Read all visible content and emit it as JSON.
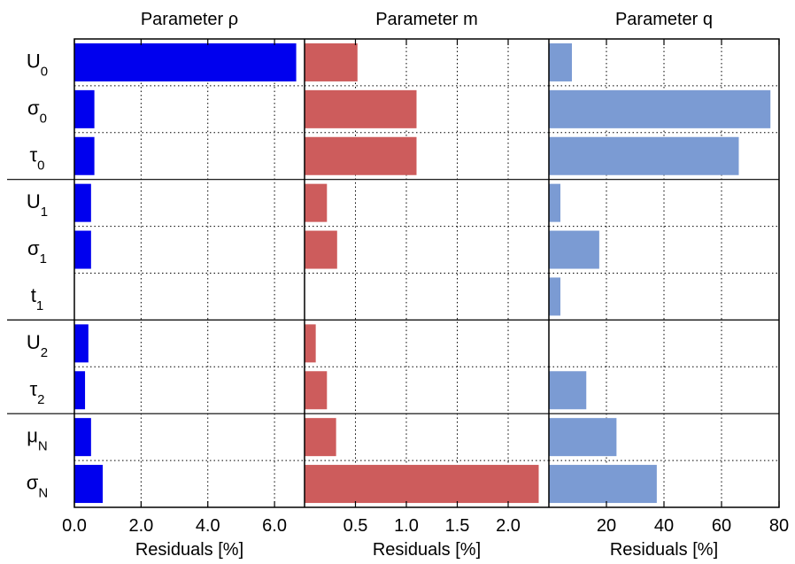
{
  "chart_data": {
    "type": "bar",
    "orientation": "horizontal",
    "categories": [
      {
        "sym": "U",
        "sub": "0"
      },
      {
        "sym": "σ",
        "sub": "0"
      },
      {
        "sym": "τ",
        "sub": "0"
      },
      {
        "sym": "U",
        "sub": "1"
      },
      {
        "sym": "σ",
        "sub": "1"
      },
      {
        "sym": "t",
        "sub": "1"
      },
      {
        "sym": "U",
        "sub": "2"
      },
      {
        "sym": "τ",
        "sub": "2"
      },
      {
        "sym": "μ",
        "sub": "N"
      },
      {
        "sym": "σ",
        "sub": "N"
      }
    ],
    "group_separators_after": [
      2,
      5,
      7
    ],
    "grid": true,
    "panels": [
      {
        "title": "Parameter ρ",
        "xlabel": "Residuals [%]",
        "xlim": [
          0,
          6.9
        ],
        "ticks": [
          0,
          2,
          4,
          6
        ],
        "tick_labels": [
          "0.0",
          "2.0",
          "4.0",
          "6.0"
        ],
        "color": "#0000ee",
        "values": [
          6.65,
          0.6,
          0.6,
          0.5,
          0.5,
          0,
          0.42,
          0.32,
          0.5,
          0.85
        ]
      },
      {
        "title": "Parameter m",
        "xlabel": "Residuals [%]",
        "xlim": [
          0,
          2.4
        ],
        "ticks": [
          0.5,
          1.0,
          1.5,
          2.0
        ],
        "tick_labels": [
          "0.5",
          "1.0",
          "1.5",
          "2.0"
        ],
        "color": "#cd5c5c",
        "values": [
          0.52,
          1.1,
          1.1,
          0.22,
          0.32,
          0,
          0.11,
          0.22,
          0.31,
          2.3
        ]
      },
      {
        "title": "Parameter q",
        "xlabel": "Residuals [%]",
        "xlim": [
          0,
          80
        ],
        "ticks": [
          20,
          40,
          60,
          80
        ],
        "tick_labels": [
          "20",
          "40",
          "60",
          "80"
        ],
        "color": "#7b9bd3",
        "values": [
          8,
          77,
          66,
          4,
          17.5,
          4,
          0,
          13,
          23.5,
          37.5
        ]
      }
    ]
  }
}
